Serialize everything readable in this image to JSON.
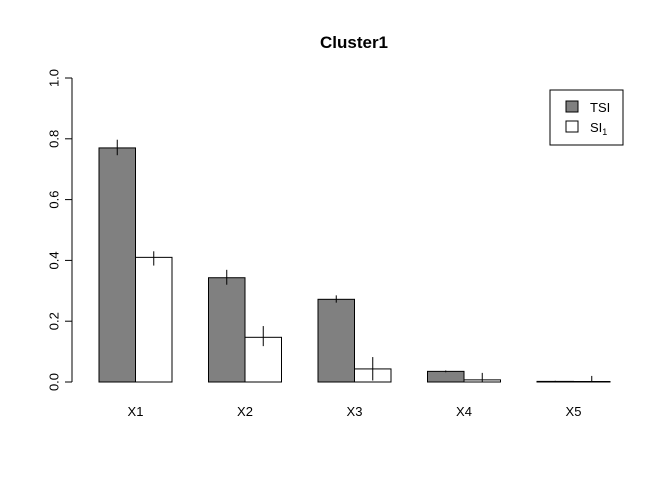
{
  "chart_data": {
    "type": "bar",
    "title": "Cluster1",
    "xlabel": "",
    "ylabel": "",
    "ylim": [
      0,
      1
    ],
    "yticks": [
      "0.0",
      "0.2",
      "0.4",
      "0.6",
      "0.8",
      "1.0"
    ],
    "categories": [
      "X1",
      "X2",
      "X3",
      "X4",
      "X5"
    ],
    "series": [
      {
        "name": "TSI",
        "color": "#808080",
        "values": [
          0.77,
          0.343,
          0.272,
          0.035,
          0.002
        ],
        "err_low": [
          0.746,
          0.32,
          0.261,
          0.032,
          0.0
        ],
        "err_high": [
          0.797,
          0.369,
          0.285,
          0.038,
          0.004
        ]
      },
      {
        "name": "SI",
        "subscript": "1",
        "color": "#ffffff",
        "values": [
          0.41,
          0.147,
          0.043,
          0.007,
          0.001
        ],
        "err_low": [
          0.383,
          0.118,
          0.005,
          0.0,
          0.0
        ],
        "err_high": [
          0.43,
          0.184,
          0.082,
          0.03,
          0.02
        ]
      }
    ],
    "legend": {
      "position": "top-right",
      "entries": [
        "TSI",
        "SI₁"
      ]
    },
    "grid": false
  }
}
